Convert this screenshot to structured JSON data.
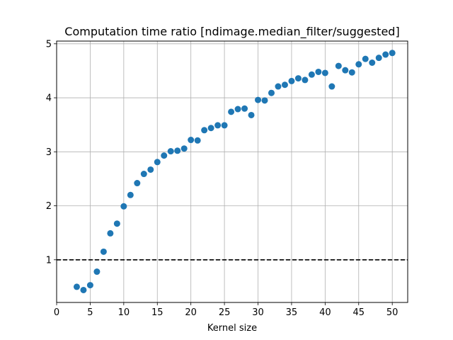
{
  "chart_data": {
    "type": "scatter",
    "title": "Computation time ratio [ndimage.median_filter/suggested]",
    "xlabel": "Kernel size",
    "ylabel": "",
    "xlim": [
      0,
      52.3
    ],
    "ylim": [
      0.21,
      5.05
    ],
    "xticks": [
      0,
      5,
      10,
      15,
      20,
      25,
      30,
      35,
      40,
      45,
      50
    ],
    "yticks": [
      1,
      2,
      3,
      4,
      5
    ],
    "grid": true,
    "reference_line": {
      "y": 1,
      "style": "dashed",
      "color": "#000000"
    },
    "marker_color": "#1f77b4",
    "series": [
      {
        "x": [
          3,
          4,
          5,
          6,
          7,
          8,
          9,
          10,
          11,
          12,
          13,
          14,
          15,
          16,
          17,
          18,
          19,
          20,
          21,
          22,
          23,
          24,
          25,
          26,
          27,
          28,
          29,
          30,
          31,
          32,
          33,
          34,
          35,
          36,
          37,
          38,
          39,
          40,
          41,
          42,
          43,
          44,
          45,
          46,
          47,
          48,
          49,
          50
        ],
        "y": [
          0.5,
          0.44,
          0.53,
          0.78,
          1.15,
          1.49,
          1.67,
          1.99,
          2.2,
          2.42,
          2.59,
          2.67,
          2.81,
          2.93,
          3.01,
          3.02,
          3.06,
          3.22,
          3.21,
          3.4,
          3.44,
          3.49,
          3.49,
          3.74,
          3.79,
          3.8,
          3.68,
          3.96,
          3.95,
          4.09,
          4.21,
          4.24,
          4.31,
          4.36,
          4.33,
          4.43,
          4.48,
          4.46,
          4.21,
          4.59,
          4.51,
          4.47,
          4.62,
          4.72,
          4.65,
          4.74,
          4.8,
          4.83
        ]
      }
    ]
  }
}
